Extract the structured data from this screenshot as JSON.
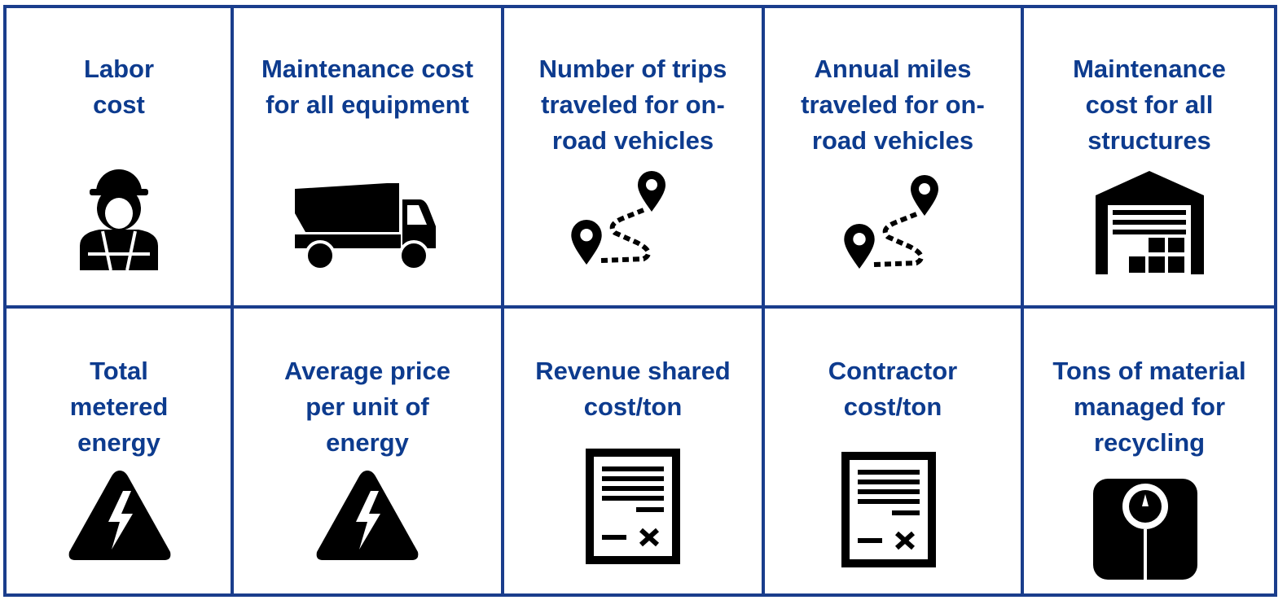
{
  "cells": [
    {
      "lines": [
        "Labor",
        "cost"
      ]
    },
    {
      "lines": [
        "Maintenance cost",
        "for all equipment"
      ]
    },
    {
      "lines": [
        "Number of trips",
        "traveled for on-",
        "road vehicles"
      ]
    },
    {
      "lines": [
        "Annual miles",
        "traveled for on-",
        "road vehicles"
      ]
    },
    {
      "lines": [
        "Maintenance",
        "cost for all",
        "structures"
      ]
    },
    {
      "lines": [
        "Total",
        "metered",
        "energy"
      ]
    },
    {
      "lines": [
        "Average price",
        "per unit of",
        "energy"
      ]
    },
    {
      "lines": [
        "Revenue shared",
        "cost/ton"
      ]
    },
    {
      "lines": [
        "Contractor",
        "cost/ton"
      ]
    },
    {
      "lines": [
        "Tons of material",
        "managed for",
        "recycling"
      ]
    }
  ]
}
